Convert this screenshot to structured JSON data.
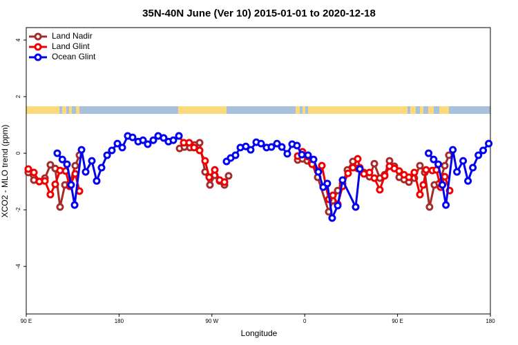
{
  "chart_data": {
    "type": "line",
    "title": "35N-40N June (Ver 10)   2015-01-01 to 2020-12-18",
    "xlabel": "Longitude",
    "ylabel": "XCO2 - MLO trend (ppm)",
    "xlim": [
      90,
      540
    ],
    "ylim": [
      -5.68,
      4.44
    ],
    "xticks": [
      {
        "value": 90,
        "label": "90 E"
      },
      180,
      {
        "value": 270,
        "label": "90 W"
      },
      {
        "value": 360,
        "label": "0"
      },
      {
        "value": 450,
        "label": "90 E"
      },
      {
        "value": 540,
        "label": "180"
      }
    ],
    "yticks": [
      -4,
      -2,
      0,
      2,
      4
    ],
    "legend": "top-left",
    "series": [
      {
        "name": "Land Nadir",
        "color": "#a52a2a",
        "x": [
          92.0,
          97.4,
          102.7,
          108.1,
          113.4,
          118.1,
          122.8,
          127.5,
          132.2,
          137.5,
          141.6,
          190,
          238.7,
          243.3,
          248.7,
          253.4,
          258.1,
          263.4,
          268.1,
          272.8,
          277.5,
          282.2,
          286.2,
          330,
          353.2,
          357.8,
          362.5,
          366.5,
          372.6,
          383.3,
          387.3,
          392.0,
          396.7,
          401.4,
          406.7,
          411.4,
          417.4,
          422.8,
          427.5,
          432.8,
          437.5,
          442.2,
          446.9,
          451.6,
          456.3,
          461.0,
          466.3,
          471.7,
          476.4,
          481.0,
          485.7,
          490.4,
          495.8,
          499.8
        ],
        "values": [
          -0.68,
          -0.95,
          -1.0,
          -0.88,
          -0.41,
          -0.54,
          -1.9,
          -1.12,
          -1.07,
          -0.44,
          -0.07,
          null,
          0.17,
          0.22,
          0.2,
          0.29,
          0.37,
          -0.66,
          -1.12,
          -0.78,
          -0.98,
          -1.12,
          -0.8,
          null,
          -0.24,
          -0.2,
          -0.27,
          -0.34,
          -0.85,
          -2.07,
          -1.68,
          -1.32,
          -1.07,
          -0.59,
          -0.29,
          -0.54,
          -0.68,
          -0.83,
          -0.37,
          -0.88,
          -0.76,
          -0.27,
          -0.46,
          -0.85,
          -0.93,
          -1.02,
          -0.88,
          -0.44,
          -0.68,
          -1.9,
          -1.12,
          -1.07,
          -0.44,
          -0.07
        ]
      },
      {
        "name": "Land Glint",
        "color": "#ee0000",
        "x": [
          92.0,
          97.4,
          102.7,
          108.1,
          113.4,
          118.1,
          122.8,
          128.2,
          132.2,
          137.5,
          141.6,
          190,
          238.0,
          242.7,
          248.0,
          252.7,
          258.1,
          263.4,
          267.4,
          272.8,
          277.5,
          282.2,
          330,
          353.2,
          357.8,
          363.2,
          367.2,
          372.6,
          376.6,
          383.3,
          387.3,
          392.0,
          396.7,
          402.0,
          406.7,
          411.4,
          413.4,
          417.4,
          422.8,
          427.5,
          432.8,
          437.5,
          442.2,
          446.9,
          451.6,
          456.3,
          461.0,
          466.3,
          471.7,
          475.0,
          477.7,
          483.7,
          487.7,
          491.8,
          495.8,
          500.5
        ],
        "values": [
          -0.56,
          -0.68,
          -1.0,
          -0.98,
          -1.46,
          -1.1,
          -0.61,
          -0.63,
          -1.17,
          -0.73,
          -1.34,
          null,
          0.61,
          0.37,
          0.37,
          0.2,
          0.1,
          -0.27,
          -0.85,
          -0.59,
          -0.95,
          -1.02,
          null,
          -0.1,
          0.05,
          -0.12,
          -0.39,
          -0.63,
          -0.44,
          -1.63,
          -1.49,
          -1.8,
          -1.17,
          -0.71,
          -0.51,
          -0.2,
          -0.51,
          -0.73,
          -0.68,
          -0.88,
          -1.29,
          -0.8,
          -0.46,
          -0.54,
          -0.63,
          -0.76,
          -0.85,
          -0.68,
          -1.46,
          -1.12,
          -0.59,
          -0.61,
          -0.59,
          -1.2,
          -0.83,
          -1.32
        ]
      },
      {
        "name": "Ocean Glint",
        "color": "#0000ee",
        "x": [
          120.1,
          125.0,
          129.5,
          133.5,
          136.9,
          143.6,
          147.6,
          153.6,
          158.3,
          163.0,
          168.4,
          173.0,
          178.4,
          183.1,
          188.4,
          193.1,
          198.5,
          203.2,
          207.8,
          213.2,
          217.9,
          223.2,
          227.9,
          232.6,
          238.0,
          283,
          284.2,
          288.2,
          292.9,
          297.6,
          302.9,
          307.6,
          313.0,
          317.7,
          323.0,
          327.7,
          333.1,
          337.8,
          343.1,
          347.8,
          352.5,
          357.2,
          363.2,
          368.6,
          373.2,
          377.9,
          381.9,
          386.6,
          392.0,
          396.7,
          409.4,
          413.4,
          440,
          480.1,
          485.0,
          489.5,
          493.5,
          496.9,
          503.6,
          507.6,
          513.6,
          518.3,
          523.0,
          528.4,
          533.0,
          538.4
        ],
        "values": [
          0,
          -0.22,
          -0.39,
          -1.12,
          -1.83,
          0.12,
          -0.66,
          -0.27,
          -0.98,
          -0.51,
          -0.07,
          0.1,
          0.34,
          0.2,
          0.61,
          0.56,
          0.41,
          0.46,
          0.32,
          0.46,
          0.61,
          0.54,
          0.41,
          0.46,
          0.61,
          null,
          -0.29,
          -0.17,
          -0.07,
          0.2,
          0.24,
          0.12,
          0.39,
          0.34,
          0.2,
          0.22,
          0.34,
          0.22,
          -0.02,
          0.32,
          0.27,
          -0.05,
          -0.07,
          -0.22,
          -0.66,
          -1.2,
          -1.07,
          -2.29,
          -1.85,
          -0.95,
          -1.9,
          -0.56,
          null,
          0,
          -0.22,
          -0.39,
          -1.12,
          -1.83,
          0.12,
          -0.66,
          -0.27,
          -0.98,
          -0.51,
          -0.07,
          0.1,
          0.34
        ]
      }
    ]
  }
}
